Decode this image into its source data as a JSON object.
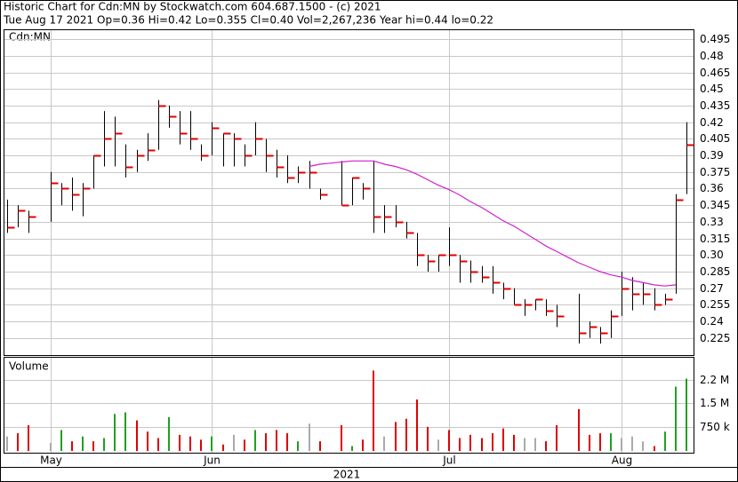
{
  "chart_data": {
    "type": "ohlc",
    "title": "Historic Chart for Cdn:MN by Stockwatch.com 604.687.1500 - (c) 2021",
    "subtitle": "Tue Aug 17 2021  Op=0.36  Hi=0.42  Lo=0.355  Cl=0.40  Vol=2,267,236  Year hi=0.44  lo=0.22",
    "symbol_label": "Cdn:MN",
    "year_label": "2021",
    "categories": [
      null,
      null,
      null,
      null,
      "May",
      null,
      null,
      null,
      null,
      null,
      null,
      null,
      null,
      null,
      null,
      null,
      null,
      null,
      null,
      "Jun",
      null,
      null,
      null,
      null,
      null,
      null,
      null,
      null,
      null,
      null,
      null,
      null,
      null,
      null,
      null,
      null,
      null,
      null,
      null,
      null,
      null,
      "Jul",
      null,
      null,
      null,
      null,
      null,
      null,
      null,
      null,
      null,
      null,
      null,
      null,
      null,
      null,
      null,
      "Aug",
      null,
      null,
      null,
      null,
      null,
      null
    ],
    "high": [
      0.35,
      0.345,
      0.34,
      null,
      0.375,
      0.365,
      0.37,
      0.365,
      0.39,
      0.43,
      0.425,
      0.4,
      0.395,
      0.41,
      0.44,
      0.435,
      0.43,
      0.43,
      0.4,
      0.42,
      0.41,
      0.41,
      0.4,
      0.42,
      0.405,
      0.395,
      0.39,
      0.38,
      0.385,
      0.36,
      null,
      0.385,
      0.37,
      0.365,
      0.385,
      0.345,
      0.345,
      0.33,
      0.32,
      0.3,
      0.3,
      0.325,
      0.3,
      0.295,
      0.29,
      0.29,
      0.275,
      0.27,
      0.26,
      0.26,
      0.26,
      0.255,
      null,
      0.265,
      0.24,
      0.235,
      0.25,
      0.285,
      0.28,
      0.275,
      0.27,
      0.265,
      0.355,
      0.42
    ],
    "low": [
      0.32,
      0.325,
      0.32,
      null,
      0.33,
      0.345,
      0.34,
      0.335,
      0.36,
      0.38,
      0.38,
      0.37,
      0.375,
      0.385,
      0.395,
      0.415,
      0.4,
      0.395,
      0.385,
      0.39,
      0.38,
      0.38,
      0.38,
      0.39,
      0.375,
      0.37,
      0.365,
      0.365,
      0.36,
      0.35,
      null,
      0.345,
      0.345,
      0.35,
      0.32,
      0.32,
      0.325,
      0.315,
      0.29,
      0.285,
      0.285,
      0.29,
      0.275,
      0.275,
      0.275,
      0.265,
      0.26,
      0.255,
      0.245,
      0.25,
      0.245,
      0.235,
      null,
      0.22,
      0.225,
      0.22,
      0.225,
      0.245,
      0.25,
      0.255,
      0.25,
      0.255,
      0.265,
      0.355
    ],
    "close": [
      0.325,
      0.34,
      0.335,
      null,
      0.365,
      0.36,
      0.355,
      0.36,
      0.39,
      0.405,
      0.41,
      0.38,
      0.39,
      0.395,
      0.435,
      0.425,
      0.41,
      0.405,
      0.39,
      0.415,
      0.41,
      0.405,
      0.39,
      0.405,
      0.39,
      0.38,
      0.37,
      0.375,
      0.375,
      0.355,
      null,
      0.345,
      0.37,
      0.36,
      0.335,
      0.335,
      0.33,
      0.32,
      0.3,
      0.295,
      0.3,
      0.3,
      0.295,
      0.285,
      0.28,
      0.275,
      0.27,
      0.255,
      0.255,
      0.26,
      0.25,
      0.245,
      null,
      0.23,
      0.235,
      0.23,
      0.245,
      0.27,
      0.265,
      0.265,
      0.255,
      0.26,
      0.35,
      0.4
    ],
    "bar_color": "#000000",
    "close_color": "#e00000",
    "ma": {
      "color": "#d020d0",
      "values": [
        null,
        null,
        null,
        null,
        null,
        null,
        null,
        null,
        null,
        null,
        null,
        null,
        null,
        null,
        null,
        null,
        null,
        null,
        null,
        null,
        null,
        null,
        null,
        null,
        null,
        null,
        null,
        null,
        0.38,
        0.382,
        0.383,
        0.384,
        0.385,
        0.385,
        0.385,
        0.382,
        0.38,
        0.377,
        0.373,
        0.368,
        0.363,
        0.359,
        0.354,
        0.348,
        0.343,
        0.337,
        0.331,
        0.326,
        0.32,
        0.314,
        0.308,
        0.303,
        0.298,
        0.293,
        0.289,
        0.285,
        0.282,
        0.28,
        0.277,
        0.275,
        0.273,
        0.272,
        0.273,
        null
      ]
    },
    "ylim": [
      0.2096,
      0.5031
    ],
    "yticks": [
      0.225,
      0.24,
      0.255,
      0.27,
      0.285,
      {
        "value": 0.3,
        "label": "0.30"
      },
      0.315,
      0.33,
      0.345,
      0.36,
      0.375,
      0.39,
      0.405,
      0.42,
      0.435,
      0.45,
      0.465,
      0.48,
      0.495
    ],
    "grid": true,
    "volume": {
      "label": "Volume",
      "values": [
        450000,
        550000,
        800000,
        null,
        250000,
        650000,
        300000,
        450000,
        300000,
        400000,
        1150000,
        1200000,
        950000,
        600000,
        400000,
        1050000,
        500000,
        450000,
        350000,
        450000,
        200000,
        500000,
        350000,
        650000,
        550000,
        650000,
        550000,
        300000,
        850000,
        300000,
        null,
        800000,
        150000,
        350000,
        2500000,
        450000,
        900000,
        1000000,
        1600000,
        750000,
        350000,
        650000,
        400000,
        500000,
        400000,
        550000,
        700000,
        500000,
        400000,
        400000,
        300000,
        800000,
        null,
        1300000,
        500000,
        550000,
        550000,
        400000,
        450000,
        300000,
        150000,
        600000,
        2000000,
        2250000
      ],
      "colors": [
        "#aaaaaa",
        "#e00000",
        "#e00000",
        null,
        "#aaaaaa",
        "#20a020",
        "#e00000",
        "#20a020",
        "#e00000",
        "#20a020",
        "#20a020",
        "#20a020",
        "#e00000",
        "#e00000",
        "#e00000",
        "#20a020",
        "#e00000",
        "#e00000",
        "#e00000",
        "#20a020",
        "#e00000",
        "#aaaaaa",
        "#e00000",
        "#20a020",
        "#e00000",
        "#e00000",
        "#e00000",
        "#20a020",
        "#aaaaaa",
        "#e00000",
        null,
        "#e00000",
        "#20a020",
        "#e00000",
        "#e00000",
        "#aaaaaa",
        "#e00000",
        "#e00000",
        "#e00000",
        "#e00000",
        "#aaaaaa",
        "#e00000",
        "#e00000",
        "#e00000",
        "#e00000",
        "#e00000",
        "#e00000",
        "#e00000",
        "#aaaaaa",
        "#aaaaaa",
        "#e00000",
        "#e00000",
        null,
        "#e00000",
        "#e00000",
        "#e00000",
        "#20a020",
        "#aaaaaa",
        "#aaaaaa",
        "#aaaaaa",
        "#e00000",
        "#20a020",
        "#20a020",
        "#20a020"
      ],
      "ylim": [
        0,
        2900000
      ],
      "yticks": [
        {
          "value": 750000,
          "label": "750 k"
        },
        {
          "value": 1500000,
          "label": "1.5 M"
        },
        {
          "value": 2200000,
          "label": "2.2 M"
        }
      ]
    }
  }
}
